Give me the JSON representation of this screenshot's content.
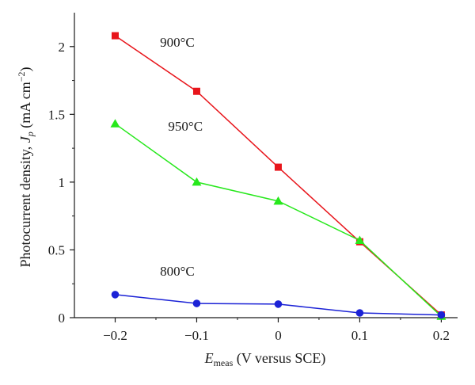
{
  "chart_data": {
    "type": "line",
    "xlabel_main": "E",
    "xlabel_sub": "meas",
    "xlabel_rest": " (V versus SCE)",
    "ylabel_main": "Photocurrent density, ",
    "ylabel_var": "J",
    "ylabel_sub": "p",
    "ylabel_unit": " (mA cm",
    "ylabel_sup": "−2",
    "ylabel_close": ")",
    "xlim": [
      -0.25,
      0.22
    ],
    "ylim": [
      0,
      2.25
    ],
    "xticks": [
      -0.2,
      -0.1,
      0,
      0.1,
      0.2
    ],
    "xtick_labels": [
      "−0.2",
      "−0.1",
      "0",
      "0.1",
      "0.2"
    ],
    "yticks": [
      0,
      0.5,
      1,
      1.5,
      2
    ],
    "ytick_labels": [
      "0",
      "0.5",
      "1",
      "1.5",
      "2"
    ],
    "x": [
      -0.2,
      -0.1,
      0,
      0.1,
      0.2
    ],
    "series": [
      {
        "name": "900°C",
        "color": "#e8151b",
        "marker": "square",
        "values": [
          2.08,
          1.67,
          1.11,
          0.56,
          0.02
        ]
      },
      {
        "name": "950°C",
        "color": "#27e81c",
        "marker": "triangle",
        "values": [
          1.43,
          1.0,
          0.86,
          0.57,
          0.01
        ]
      },
      {
        "name": "800°C",
        "color": "#1b22d6",
        "marker": "circle",
        "values": [
          0.17,
          0.105,
          0.1,
          0.035,
          0.02
        ]
      }
    ],
    "annotations": [
      {
        "text": "900°C",
        "series": 0,
        "x": -0.145,
        "y": 2.0
      },
      {
        "text": "950°C",
        "series": 1,
        "x": -0.135,
        "y": 1.38
      },
      {
        "text": "800°C",
        "series": 2,
        "x": -0.145,
        "y": 0.31
      }
    ],
    "grid": false
  }
}
